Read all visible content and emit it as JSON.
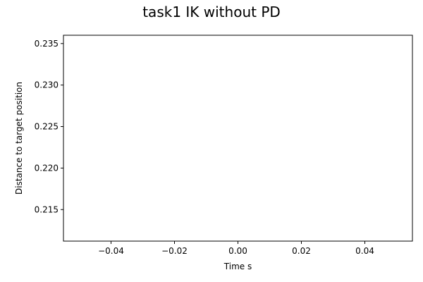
{
  "chart_data": {
    "type": "line",
    "title": "task1 IK without PD",
    "xlabel": "Time s",
    "ylabel": "Distance to target position",
    "xlim": [
      -0.055,
      0.055
    ],
    "ylim": [
      0.2112,
      0.236
    ],
    "xticks": [
      -0.04,
      -0.02,
      0.0,
      0.02,
      0.04
    ],
    "xtick_labels": [
      "−0.04",
      "−0.02",
      "0.00",
      "0.02",
      "0.04"
    ],
    "yticks": [
      0.215,
      0.22,
      0.225,
      0.23,
      0.235
    ],
    "ytick_labels": [
      "0.215",
      "0.220",
      "0.225",
      "0.230",
      "0.235"
    ],
    "grid": false,
    "series": []
  }
}
